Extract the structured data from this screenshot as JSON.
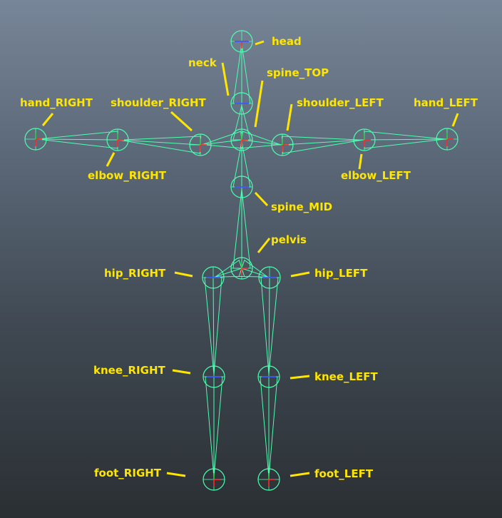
{
  "colors": {
    "bone": "#4dffb0",
    "label": "#ffe600",
    "axis_x": "#ff2a2a",
    "axis_y": "#2ecc40",
    "axis_z": "#3a5bff"
  },
  "joints": [
    {
      "id": "head",
      "label": "head"
    },
    {
      "id": "neck",
      "label": "neck"
    },
    {
      "id": "spine_top",
      "label": "spine_TOP"
    },
    {
      "id": "shoulder_right",
      "label": "shoulder_RIGHT"
    },
    {
      "id": "shoulder_left",
      "label": "shoulder_LEFT"
    },
    {
      "id": "hand_right",
      "label": "hand_RIGHT"
    },
    {
      "id": "hand_left",
      "label": "hand_LEFT"
    },
    {
      "id": "elbow_right",
      "label": "elbow_RIGHT"
    },
    {
      "id": "elbow_left",
      "label": "elbow_LEFT"
    },
    {
      "id": "spine_mid",
      "label": "spine_MID"
    },
    {
      "id": "pelvis",
      "label": "pelvis"
    },
    {
      "id": "hip_right",
      "label": "hip_RIGHT"
    },
    {
      "id": "hip_left",
      "label": "hip_LEFT"
    },
    {
      "id": "knee_right",
      "label": "knee_RIGHT"
    },
    {
      "id": "knee_left",
      "label": "knee_LEFT"
    },
    {
      "id": "foot_right",
      "label": "foot_RIGHT"
    },
    {
      "id": "foot_left",
      "label": "foot_LEFT"
    }
  ]
}
